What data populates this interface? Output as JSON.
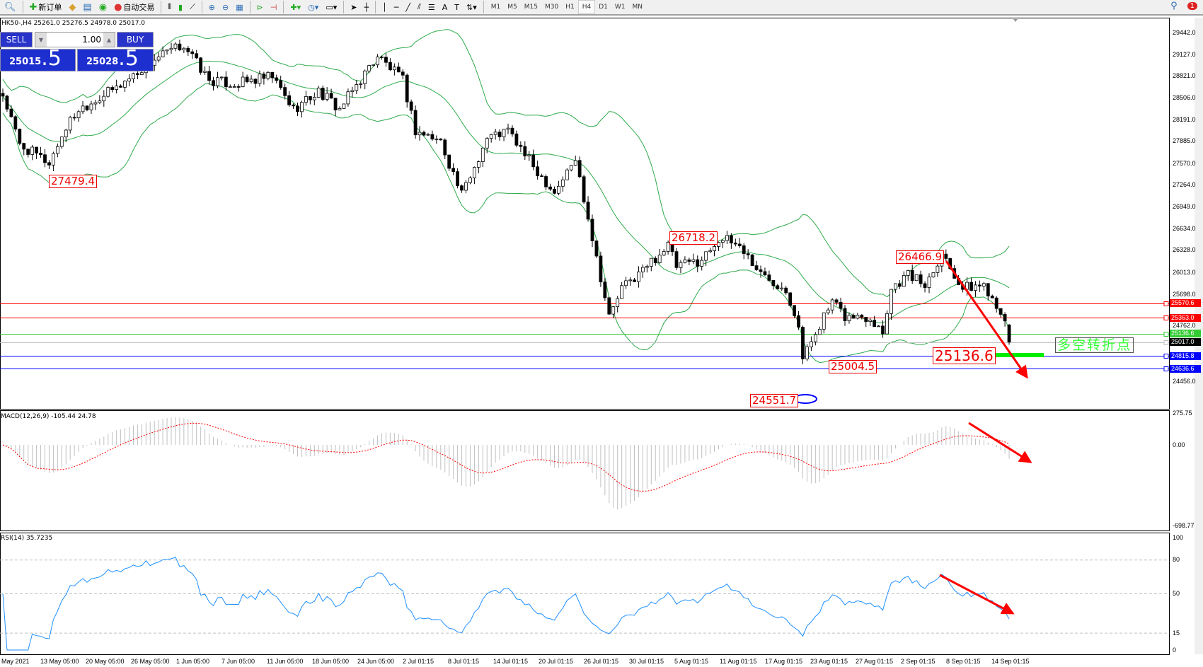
{
  "toolbar": {
    "items": [
      {
        "icon": "zoom-icon",
        "label": ""
      },
      {
        "icon": "new-order-icon",
        "label": "新订单"
      },
      {
        "icon": "metaeditor-icon",
        "label": ""
      },
      {
        "icon": "history-icon",
        "label": ""
      },
      {
        "icon": "signal-icon",
        "label": ""
      },
      {
        "icon": "auto-trading-icon",
        "label": "自动交易"
      }
    ],
    "tools": [
      "bar-chart-icon",
      "candlestick-icon",
      "line-chart-icon",
      "zoom-in-icon",
      "zoom-out-icon",
      "tile-windows-icon",
      "chart-shift-icon",
      "autoscroll-icon",
      "indicators-icon",
      "periods-icon",
      "templates-icon",
      "cursor-icon",
      "crosshair-icon",
      "vertical-line-icon",
      "horizontal-line-icon",
      "trendline-icon",
      "equidistant-channel-icon",
      "fibonacci-icon",
      "text-icon",
      "text-label-icon",
      "arrows-icon"
    ],
    "timeframes": [
      "M1",
      "M5",
      "M15",
      "M30",
      "H1",
      "H4",
      "D1",
      "W1",
      "MN"
    ],
    "active_timeframe": "H4",
    "notifications": "1"
  },
  "symbol_header": "HK50-,H4  25261.0 25276.5 24978.0 25017.0",
  "trade_panel": {
    "sell_label": "SELL",
    "buy_label": "BUY",
    "lot": "1.00",
    "sell_price_main": "25015",
    "sell_price_big": ".5",
    "buy_price_main": "25028",
    "buy_price_big": ".5"
  },
  "chart_data": {
    "type": "candlestick",
    "symbol": "HK50-",
    "timeframe": "H4",
    "ohlc_last": {
      "open": 25261.0,
      "high": 25276.5,
      "low": 24978.0,
      "close": 25017.0
    },
    "price_path": [
      [
        0,
        28551
      ],
      [
        4,
        27834
      ],
      [
        11,
        27578
      ],
      [
        15,
        28090
      ],
      [
        18,
        28346
      ],
      [
        27,
        28653
      ],
      [
        36,
        29063
      ],
      [
        43,
        29268
      ],
      [
        49,
        28756
      ],
      [
        55,
        28705
      ],
      [
        64,
        28807
      ],
      [
        69,
        28346
      ],
      [
        75,
        28602
      ],
      [
        80,
        28346
      ],
      [
        86,
        28858
      ],
      [
        89,
        29114
      ],
      [
        95,
        28756
      ],
      [
        98,
        28039
      ],
      [
        104,
        27885
      ],
      [
        109,
        27117
      ],
      [
        115,
        27937
      ],
      [
        120,
        28039
      ],
      [
        126,
        27527
      ],
      [
        131,
        27168
      ],
      [
        136,
        27629
      ],
      [
        139,
        26810
      ],
      [
        144,
        25376
      ],
      [
        147,
        25785
      ],
      [
        151,
        25990
      ],
      [
        158,
        26400
      ],
      [
        160,
        26093
      ],
      [
        166,
        26196
      ],
      [
        170,
        26503
      ],
      [
        175,
        26400
      ],
      [
        180,
        25990
      ],
      [
        186,
        25785
      ],
      [
        189,
        25274
      ],
      [
        190,
        24762
      ],
      [
        193,
        25172
      ],
      [
        197,
        25581
      ],
      [
        200,
        25376
      ],
      [
        206,
        25376
      ],
      [
        209,
        25172
      ],
      [
        211,
        25785
      ],
      [
        215,
        25990
      ],
      [
        219,
        25837
      ],
      [
        223,
        26298
      ],
      [
        228,
        25785
      ],
      [
        233,
        25837
      ],
      [
        237,
        25479
      ],
      [
        239,
        25017
      ]
    ],
    "y_ticks": [
      "29442.0",
      "29127.0",
      "28821.0",
      "28506.0",
      "28191.0",
      "27885.0",
      "27570.0",
      "27264.0",
      "26949.0",
      "26634.0",
      "26328.0",
      "26013.0",
      "25698.0",
      "24762.0",
      "24456.0"
    ],
    "ylim": [
      24456.0,
      29442.0
    ],
    "indicators": {
      "bollinger": {
        "period": 20,
        "deviation": 2,
        "color": "#2eaa4a"
      }
    },
    "levels": [
      {
        "value": "25570.6",
        "color": "#ff0000"
      },
      {
        "value": "25363.0",
        "color": "#ff0000"
      },
      {
        "value": "25136.6",
        "color": "#33cc33"
      },
      {
        "value": "25017.0",
        "color": "#000000",
        "line": "#c0c0c0"
      },
      {
        "value": "24815.8",
        "color": "#0000ff"
      },
      {
        "value": "24636.6",
        "color": "#0000ff"
      }
    ],
    "annotations": [
      "27479.4",
      "26718.2",
      "26466.9",
      "25004.5",
      "24551.7",
      "25136.6"
    ],
    "turning_point_label": "多空转折点",
    "x_ticks": [
      "May 2021",
      "13 May 05:00",
      "20 May 05:00",
      "26 May 05:00",
      "1 Jun 05:00",
      "7 Jun 05:00",
      "11 Jun 05:00",
      "18 Jun 05:00",
      "24 Jun 05:00",
      "2 Jul 01:15",
      "8 Jul 01:15",
      "14 Jul 01:15",
      "20 Jul 01:15",
      "26 Jul 01:15",
      "30 Jul 01:15",
      "5 Aug 01:15",
      "11 Aug 01:15",
      "17 Aug 01:15",
      "23 Aug 01:15",
      "27 Aug 01:15",
      "2 Sep 01:15",
      "8 Sep 01:15",
      "14 Sep 01:15"
    ]
  },
  "macd": {
    "title": "MACD(12,26,9) -105.44 24.78",
    "ticks": [
      "275.75",
      "0.00",
      "-698.77"
    ],
    "ylim": [
      -698.77,
      275.75
    ],
    "hist_color": "#c0c0c0",
    "signal_color": "#ff0000"
  },
  "rsi": {
    "title": "RSI(14) 35.7235",
    "ticks": [
      "100",
      "80",
      "50",
      "15",
      "0"
    ],
    "levels": [
      80,
      50,
      15
    ],
    "color": "#1e90ff"
  }
}
